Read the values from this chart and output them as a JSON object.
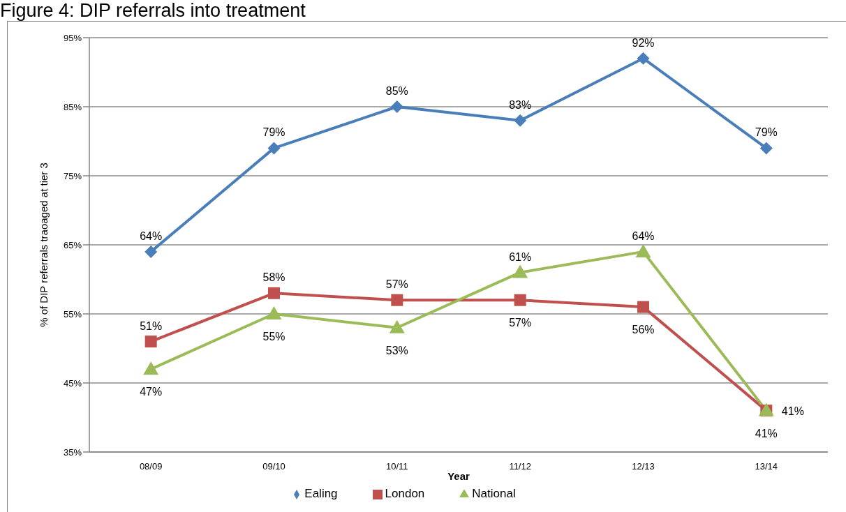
{
  "chart_data": {
    "type": "line",
    "title": "Figure 4: DIP referrals into treatment",
    "xlabel": "Year",
    "ylabel": "% of DIP referrals traoaged at tier 3",
    "categories": [
      "08/09",
      "09/10",
      "10/11",
      "11/12",
      "12/13",
      "13/14"
    ],
    "series": [
      {
        "name": "Ealing",
        "color": "#4a7ebb",
        "marker": "diamond",
        "values": [
          64,
          79,
          85,
          83,
          92,
          79
        ],
        "value_labels": [
          "64%",
          "79%",
          "85%",
          "83%",
          "92%",
          "79%"
        ]
      },
      {
        "name": "London",
        "color": "#c0504d",
        "marker": "square",
        "values": [
          51,
          58,
          57,
          57,
          56,
          41
        ],
        "value_labels": [
          "51%",
          "58%",
          "57%",
          "57%",
          "56%",
          "41%"
        ]
      },
      {
        "name": "National",
        "color": "#9bbb59",
        "marker": "triangle",
        "values": [
          47,
          55,
          53,
          61,
          64,
          41
        ],
        "value_labels": [
          "47%",
          "55%",
          "53%",
          "61%",
          "64%",
          "41%"
        ]
      }
    ],
    "ylim": [
      35,
      95
    ],
    "yticks": [
      {
        "value": 35,
        "label": "35%"
      },
      {
        "value": 45,
        "label": "45%"
      },
      {
        "value": 55,
        "label": "55%"
      },
      {
        "value": 65,
        "label": "65%"
      },
      {
        "value": 75,
        "label": "75%"
      },
      {
        "value": 85,
        "label": "85%"
      },
      {
        "value": 95,
        "label": "95%"
      }
    ],
    "grid": "y",
    "legend": "bottom"
  }
}
